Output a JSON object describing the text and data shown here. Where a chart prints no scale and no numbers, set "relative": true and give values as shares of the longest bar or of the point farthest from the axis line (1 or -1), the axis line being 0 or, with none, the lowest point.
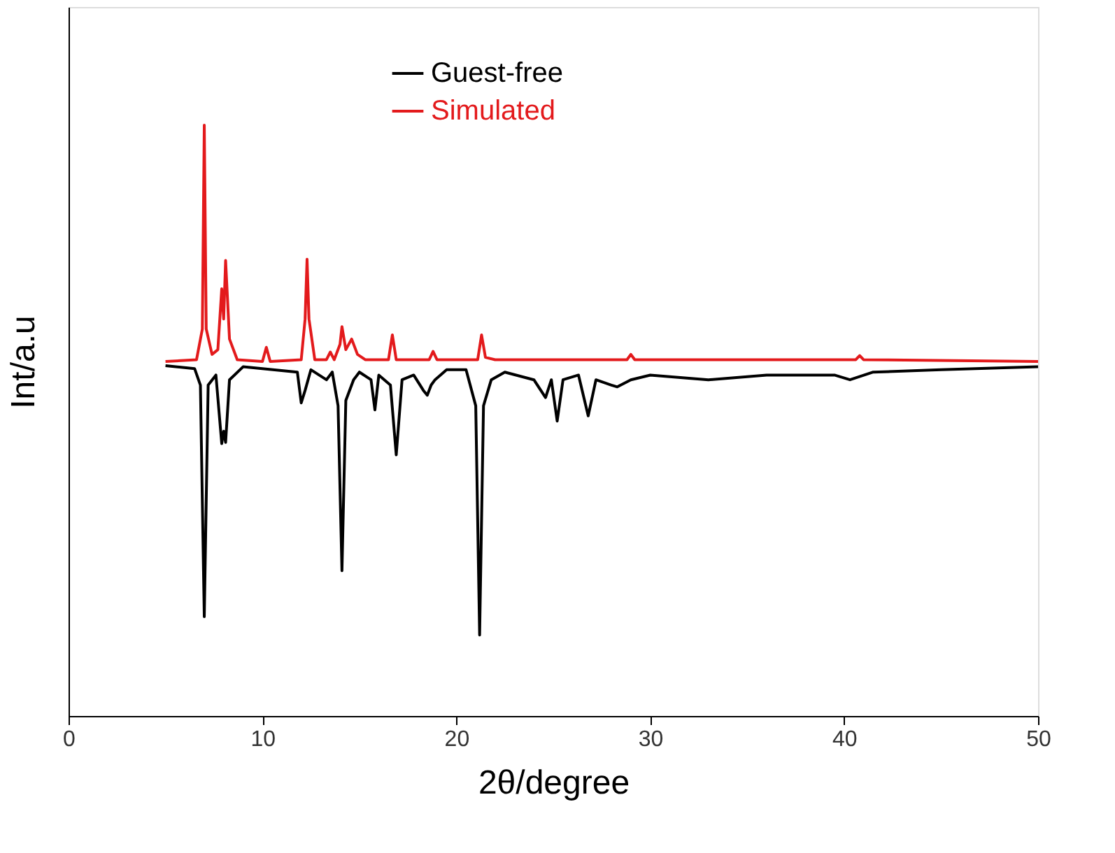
{
  "chart_data": {
    "type": "line",
    "relative": true,
    "xlabel": "2θ/degree",
    "ylabel": "Int/a.u",
    "xlim": [
      0,
      50
    ],
    "xticks": [
      0,
      10,
      20,
      30,
      40,
      50
    ],
    "tick_labels": "x",
    "grid": false,
    "legend": "top",
    "line_style": "solid",
    "marker": "none",
    "series": [
      {
        "name": "Guest-free",
        "color": "#000000",
        "x": [
          5,
          6.5,
          6.8,
          7.0,
          7.2,
          7.6,
          7.9,
          8.0,
          8.1,
          8.3,
          9,
          11.8,
          12.0,
          12.2,
          12.5,
          13.3,
          13.6,
          13.9,
          14.1,
          14.3,
          14.7,
          15.0,
          15.6,
          15.8,
          16.0,
          16.6,
          16.9,
          17.2,
          17.8,
          18.3,
          18.5,
          18.7,
          18.9,
          19.5,
          20.5,
          21.0,
          21.2,
          21.4,
          21.8,
          22.5,
          24.0,
          24.6,
          24.9,
          25.2,
          25.5,
          26.3,
          26.8,
          27.2,
          28.0,
          28.3,
          29,
          30,
          33,
          36,
          39.5,
          40.3,
          41.5,
          45,
          50
        ],
        "values": [
          0.593,
          0.588,
          0.56,
          0.168,
          0.56,
          0.577,
          0.461,
          0.482,
          0.463,
          0.569,
          0.591,
          0.582,
          0.53,
          0.551,
          0.586,
          0.569,
          0.582,
          0.525,
          0.246,
          0.534,
          0.569,
          0.582,
          0.569,
          0.518,
          0.577,
          0.56,
          0.442,
          0.569,
          0.577,
          0.551,
          0.543,
          0.56,
          0.569,
          0.586,
          0.586,
          0.525,
          0.137,
          0.525,
          0.569,
          0.582,
          0.569,
          0.539,
          0.569,
          0.499,
          0.569,
          0.577,
          0.508,
          0.569,
          0.56,
          0.557,
          0.569,
          0.577,
          0.569,
          0.577,
          0.577,
          0.569,
          0.582,
          0.586,
          0.591
        ]
      },
      {
        "name": "Simulated",
        "color": "#e31a1c",
        "x": [
          5,
          6.6,
          6.9,
          7.0,
          7.1,
          7.4,
          7.7,
          7.9,
          8.0,
          8.1,
          8.3,
          8.7,
          10.0,
          10.2,
          10.4,
          12.0,
          12.2,
          12.3,
          12.4,
          12.7,
          13.3,
          13.5,
          13.7,
          14.0,
          14.1,
          14.3,
          14.6,
          14.9,
          15.3,
          16.5,
          16.7,
          16.9,
          18.6,
          18.8,
          19.0,
          21.1,
          21.3,
          21.5,
          22.0,
          25,
          28.8,
          29,
          29.2,
          35,
          40.6,
          40.8,
          41,
          50
        ],
        "values": [
          0.6,
          0.603,
          0.655,
          1.0,
          0.655,
          0.612,
          0.62,
          0.723,
          0.672,
          0.771,
          0.638,
          0.603,
          0.6,
          0.624,
          0.6,
          0.603,
          0.672,
          0.773,
          0.672,
          0.603,
          0.603,
          0.616,
          0.603,
          0.629,
          0.659,
          0.62,
          0.638,
          0.612,
          0.603,
          0.603,
          0.645,
          0.603,
          0.603,
          0.617,
          0.603,
          0.603,
          0.645,
          0.607,
          0.603,
          0.603,
          0.603,
          0.612,
          0.603,
          0.603,
          0.603,
          0.61,
          0.603,
          0.6
        ]
      }
    ]
  }
}
